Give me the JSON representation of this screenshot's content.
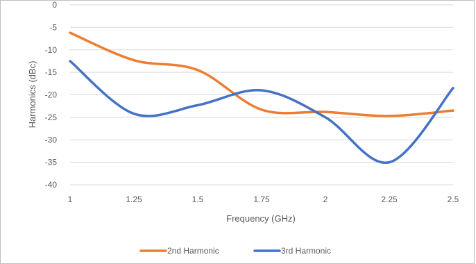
{
  "chart_data": {
    "type": "line",
    "xlabel": "Frequency (GHz)",
    "ylabel": "Harmonics (dBc)",
    "xlim": [
      1,
      2.5
    ],
    "ylim": [
      -40,
      0
    ],
    "x_ticks": [
      "1",
      "1.25",
      "1.5",
      "1.75",
      "2",
      "2.25",
      "2.5"
    ],
    "y_ticks": [
      "0",
      "-5",
      "-10",
      "-15",
      "-20",
      "-25",
      "-30",
      "-35",
      "-40"
    ],
    "grid": "horizontal",
    "legend": "bottom",
    "x": [
      1,
      1.25,
      1.5,
      1.75,
      2,
      2.25,
      2.5
    ],
    "series": [
      {
        "name": "2nd Harmonic",
        "color": "#ED7D31",
        "values": [
          -6.2,
          -12.3,
          -14.5,
          -23.3,
          -23.8,
          -24.7,
          -23.5
        ]
      },
      {
        "name": "3rd Harmonic",
        "color": "#4472C4",
        "values": [
          -12.5,
          -24.2,
          -22.3,
          -19.0,
          -25.0,
          -35.0,
          -18.5
        ]
      }
    ]
  }
}
